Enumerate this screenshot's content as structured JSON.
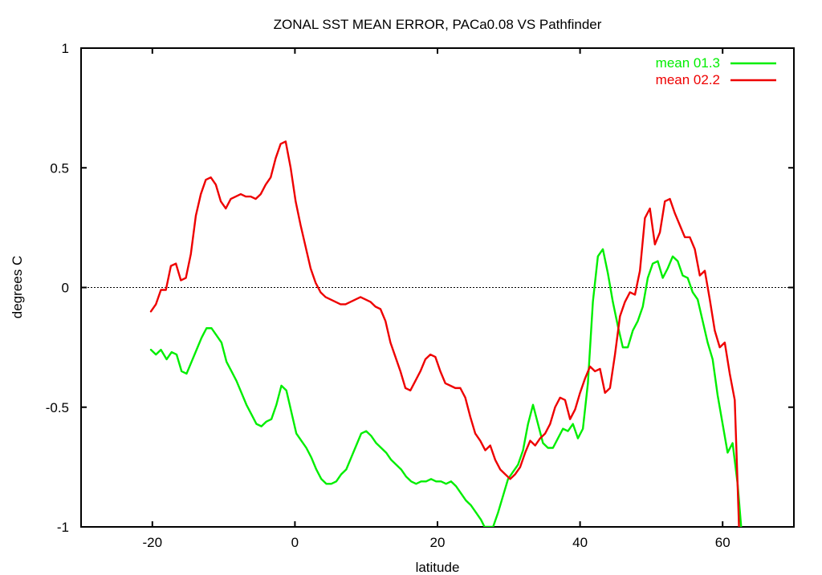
{
  "chart_data": {
    "type": "line",
    "title": "ZONAL SST MEAN ERROR, PACa0.08 VS Pathfinder",
    "xlabel": "latitude",
    "ylabel": "degrees C",
    "xlim": [
      -30,
      70
    ],
    "ylim": [
      -1,
      1
    ],
    "xticks": [
      -20,
      0,
      20,
      40,
      60
    ],
    "xtick_labels": [
      "-20",
      "0",
      "20",
      "40",
      "60"
    ],
    "yticks": [
      -1,
      -0.5,
      0,
      0.5,
      1
    ],
    "ytick_labels": [
      "-1",
      "-0.5",
      "0",
      "0.5",
      "1"
    ],
    "zero_line": true,
    "grid": false,
    "legend_position": "top-right",
    "series": [
      {
        "name": "mean 01.3",
        "color": "#00ee00",
        "points": [
          [
            -20.2,
            -0.26
          ],
          [
            -19.5,
            -0.28
          ],
          [
            -18.8,
            -0.26
          ],
          [
            -18.0,
            -0.3
          ],
          [
            -17.3,
            -0.27
          ],
          [
            -16.6,
            -0.28
          ],
          [
            -15.9,
            -0.35
          ],
          [
            -15.2,
            -0.36
          ],
          [
            -14.5,
            -0.31
          ],
          [
            -13.8,
            -0.26
          ],
          [
            -13.1,
            -0.21
          ],
          [
            -12.4,
            -0.17
          ],
          [
            -11.7,
            -0.17
          ],
          [
            -11.0,
            -0.2
          ],
          [
            -10.3,
            -0.23
          ],
          [
            -9.6,
            -0.31
          ],
          [
            -8.9,
            -0.35
          ],
          [
            -8.2,
            -0.39
          ],
          [
            -7.5,
            -0.44
          ],
          [
            -6.8,
            -0.49
          ],
          [
            -6.1,
            -0.53
          ],
          [
            -5.4,
            -0.57
          ],
          [
            -4.7,
            -0.58
          ],
          [
            -4.0,
            -0.56
          ],
          [
            -3.3,
            -0.55
          ],
          [
            -2.6,
            -0.49
          ],
          [
            -1.9,
            -0.41
          ],
          [
            -1.2,
            -0.43
          ],
          [
            -0.5,
            -0.52
          ],
          [
            0.2,
            -0.61
          ],
          [
            0.9,
            -0.64
          ],
          [
            1.6,
            -0.67
          ],
          [
            2.3,
            -0.71
          ],
          [
            3.0,
            -0.76
          ],
          [
            3.7,
            -0.8
          ],
          [
            4.4,
            -0.82
          ],
          [
            5.1,
            -0.82
          ],
          [
            5.8,
            -0.81
          ],
          [
            6.5,
            -0.78
          ],
          [
            7.2,
            -0.76
          ],
          [
            7.9,
            -0.71
          ],
          [
            8.6,
            -0.66
          ],
          [
            9.3,
            -0.61
          ],
          [
            10.0,
            -0.6
          ],
          [
            10.7,
            -0.62
          ],
          [
            11.4,
            -0.65
          ],
          [
            12.1,
            -0.67
          ],
          [
            12.8,
            -0.69
          ],
          [
            13.5,
            -0.72
          ],
          [
            14.2,
            -0.74
          ],
          [
            14.9,
            -0.76
          ],
          [
            15.6,
            -0.79
          ],
          [
            16.3,
            -0.81
          ],
          [
            17.0,
            -0.82
          ],
          [
            17.7,
            -0.81
          ],
          [
            18.4,
            -0.81
          ],
          [
            19.1,
            -0.8
          ],
          [
            19.8,
            -0.81
          ],
          [
            20.5,
            -0.81
          ],
          [
            21.2,
            -0.82
          ],
          [
            21.9,
            -0.81
          ],
          [
            22.6,
            -0.83
          ],
          [
            23.3,
            -0.86
          ],
          [
            24.0,
            -0.89
          ],
          [
            24.7,
            -0.91
          ],
          [
            25.4,
            -0.94
          ],
          [
            26.1,
            -0.97
          ],
          [
            26.6,
            -1.0
          ],
          [
            27.8,
            -1.0
          ],
          [
            28.5,
            -0.94
          ],
          [
            29.2,
            -0.87
          ],
          [
            29.9,
            -0.8
          ],
          [
            30.6,
            -0.77
          ],
          [
            31.3,
            -0.74
          ],
          [
            32.0,
            -0.68
          ],
          [
            32.7,
            -0.57
          ],
          [
            33.4,
            -0.49
          ],
          [
            34.1,
            -0.57
          ],
          [
            34.8,
            -0.65
          ],
          [
            35.5,
            -0.67
          ],
          [
            36.2,
            -0.67
          ],
          [
            36.9,
            -0.63
          ],
          [
            37.6,
            -0.59
          ],
          [
            38.3,
            -0.6
          ],
          [
            39.0,
            -0.57
          ],
          [
            39.7,
            -0.63
          ],
          [
            40.4,
            -0.59
          ],
          [
            41.1,
            -0.4
          ],
          [
            41.8,
            -0.06
          ],
          [
            42.5,
            0.13
          ],
          [
            43.2,
            0.16
          ],
          [
            43.9,
            0.06
          ],
          [
            44.6,
            -0.06
          ],
          [
            45.3,
            -0.16
          ],
          [
            46.0,
            -0.25
          ],
          [
            46.7,
            -0.25
          ],
          [
            47.4,
            -0.18
          ],
          [
            48.1,
            -0.14
          ],
          [
            48.8,
            -0.08
          ],
          [
            49.5,
            0.04
          ],
          [
            50.2,
            0.1
          ],
          [
            50.9,
            0.11
          ],
          [
            51.6,
            0.04
          ],
          [
            52.3,
            0.08
          ],
          [
            53.0,
            0.13
          ],
          [
            53.7,
            0.11
          ],
          [
            54.4,
            0.05
          ],
          [
            55.1,
            0.04
          ],
          [
            55.8,
            -0.02
          ],
          [
            56.5,
            -0.05
          ],
          [
            57.2,
            -0.14
          ],
          [
            57.9,
            -0.23
          ],
          [
            58.6,
            -0.3
          ],
          [
            59.3,
            -0.45
          ],
          [
            60.0,
            -0.57
          ],
          [
            60.7,
            -0.69
          ],
          [
            61.4,
            -0.65
          ],
          [
            62.1,
            -0.82
          ],
          [
            62.6,
            -1.0
          ]
        ]
      },
      {
        "name": "mean 02.2",
        "color": "#ee0000",
        "points": [
          [
            -20.2,
            -0.1
          ],
          [
            -19.5,
            -0.07
          ],
          [
            -18.8,
            -0.01
          ],
          [
            -18.1,
            -0.01
          ],
          [
            -17.4,
            0.09
          ],
          [
            -16.7,
            0.1
          ],
          [
            -16.0,
            0.03
          ],
          [
            -15.3,
            0.04
          ],
          [
            -14.6,
            0.14
          ],
          [
            -13.9,
            0.3
          ],
          [
            -13.2,
            0.39
          ],
          [
            -12.5,
            0.45
          ],
          [
            -11.8,
            0.46
          ],
          [
            -11.1,
            0.43
          ],
          [
            -10.4,
            0.36
          ],
          [
            -9.7,
            0.33
          ],
          [
            -9.0,
            0.37
          ],
          [
            -8.3,
            0.38
          ],
          [
            -7.6,
            0.39
          ],
          [
            -6.9,
            0.38
          ],
          [
            -6.2,
            0.38
          ],
          [
            -5.5,
            0.37
          ],
          [
            -4.8,
            0.39
          ],
          [
            -4.1,
            0.43
          ],
          [
            -3.4,
            0.46
          ],
          [
            -2.7,
            0.54
          ],
          [
            -2.0,
            0.6
          ],
          [
            -1.3,
            0.61
          ],
          [
            -0.6,
            0.5
          ],
          [
            0.1,
            0.36
          ],
          [
            0.8,
            0.26
          ],
          [
            1.5,
            0.17
          ],
          [
            2.2,
            0.08
          ],
          [
            2.9,
            0.02
          ],
          [
            3.6,
            -0.02
          ],
          [
            4.3,
            -0.04
          ],
          [
            5.0,
            -0.05
          ],
          [
            5.7,
            -0.06
          ],
          [
            6.4,
            -0.07
          ],
          [
            7.1,
            -0.07
          ],
          [
            7.8,
            -0.06
          ],
          [
            8.5,
            -0.05
          ],
          [
            9.2,
            -0.04
          ],
          [
            9.9,
            -0.05
          ],
          [
            10.6,
            -0.06
          ],
          [
            11.3,
            -0.08
          ],
          [
            12.0,
            -0.09
          ],
          [
            12.7,
            -0.14
          ],
          [
            13.4,
            -0.23
          ],
          [
            14.1,
            -0.29
          ],
          [
            14.8,
            -0.35
          ],
          [
            15.5,
            -0.42
          ],
          [
            16.2,
            -0.43
          ],
          [
            16.9,
            -0.39
          ],
          [
            17.6,
            -0.35
          ],
          [
            18.3,
            -0.3
          ],
          [
            19.0,
            -0.28
          ],
          [
            19.7,
            -0.29
          ],
          [
            20.4,
            -0.35
          ],
          [
            21.1,
            -0.4
          ],
          [
            21.8,
            -0.41
          ],
          [
            22.5,
            -0.42
          ],
          [
            23.2,
            -0.42
          ],
          [
            23.9,
            -0.46
          ],
          [
            24.6,
            -0.54
          ],
          [
            25.3,
            -0.61
          ],
          [
            26.0,
            -0.64
          ],
          [
            26.7,
            -0.68
          ],
          [
            27.4,
            -0.66
          ],
          [
            28.1,
            -0.72
          ],
          [
            28.8,
            -0.76
          ],
          [
            29.5,
            -0.78
          ],
          [
            30.2,
            -0.8
          ],
          [
            30.9,
            -0.78
          ],
          [
            31.6,
            -0.75
          ],
          [
            32.3,
            -0.69
          ],
          [
            33.0,
            -0.64
          ],
          [
            33.7,
            -0.66
          ],
          [
            34.4,
            -0.63
          ],
          [
            35.1,
            -0.61
          ],
          [
            35.8,
            -0.57
          ],
          [
            36.5,
            -0.5
          ],
          [
            37.2,
            -0.46
          ],
          [
            37.9,
            -0.47
          ],
          [
            38.6,
            -0.55
          ],
          [
            39.3,
            -0.51
          ],
          [
            40.0,
            -0.44
          ],
          [
            40.7,
            -0.38
          ],
          [
            41.4,
            -0.33
          ],
          [
            42.1,
            -0.35
          ],
          [
            42.8,
            -0.34
          ],
          [
            43.5,
            -0.44
          ],
          [
            44.2,
            -0.42
          ],
          [
            44.9,
            -0.28
          ],
          [
            45.6,
            -0.12
          ],
          [
            46.3,
            -0.06
          ],
          [
            47.0,
            -0.02
          ],
          [
            47.7,
            -0.03
          ],
          [
            48.4,
            0.07
          ],
          [
            49.1,
            0.29
          ],
          [
            49.8,
            0.33
          ],
          [
            50.5,
            0.18
          ],
          [
            51.2,
            0.23
          ],
          [
            51.9,
            0.36
          ],
          [
            52.6,
            0.37
          ],
          [
            53.3,
            0.31
          ],
          [
            54.0,
            0.26
          ],
          [
            54.7,
            0.21
          ],
          [
            55.4,
            0.21
          ],
          [
            56.1,
            0.16
          ],
          [
            56.8,
            0.05
          ],
          [
            57.5,
            0.07
          ],
          [
            58.2,
            -0.05
          ],
          [
            58.9,
            -0.18
          ],
          [
            59.6,
            -0.25
          ],
          [
            60.3,
            -0.23
          ],
          [
            61.0,
            -0.36
          ],
          [
            61.7,
            -0.47
          ],
          [
            62.3,
            -1.0
          ]
        ]
      }
    ]
  }
}
